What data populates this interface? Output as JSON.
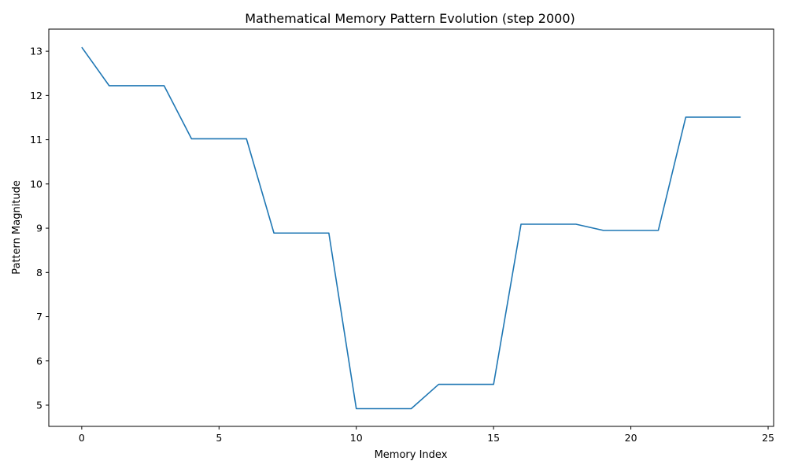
{
  "chart_data": {
    "type": "line",
    "title": "Mathematical Memory Pattern Evolution (step 2000)",
    "xlabel": "Memory Index",
    "ylabel": "Pattern Magnitude",
    "xlim": [
      -1.2,
      25.2
    ],
    "ylim": [
      4.52,
      13.5
    ],
    "xticks": [
      0,
      5,
      10,
      15,
      20,
      25
    ],
    "yticks": [
      5,
      6,
      7,
      8,
      9,
      10,
      11,
      12,
      13
    ],
    "grid": false,
    "series": [
      {
        "color": "#1f77b4",
        "x": [
          0,
          1,
          2,
          3,
          4,
          5,
          6,
          7,
          8,
          9,
          10,
          11,
          12,
          13,
          14,
          15,
          16,
          17,
          18,
          19,
          20,
          21,
          22,
          23,
          24
        ],
        "y": [
          13.09,
          12.22,
          12.22,
          12.22,
          11.02,
          11.02,
          11.02,
          8.89,
          8.89,
          8.89,
          4.92,
          4.92,
          4.92,
          5.47,
          5.47,
          5.47,
          9.09,
          9.09,
          9.09,
          8.95,
          8.95,
          8.95,
          11.51,
          11.51,
          11.51
        ]
      }
    ]
  }
}
